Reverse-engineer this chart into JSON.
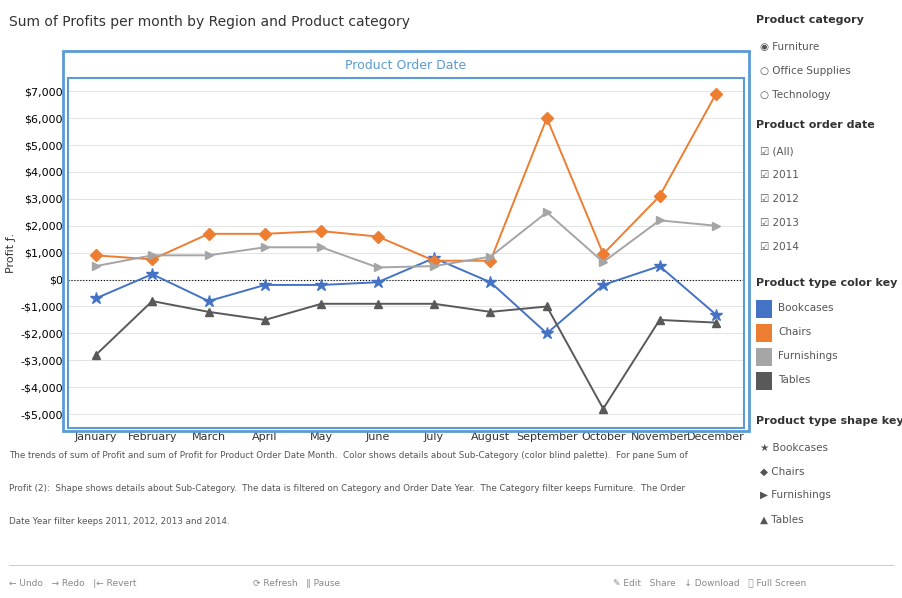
{
  "title": "Sum of Profits per month by Region and Product category",
  "xlabel": "Product Order Date",
  "ylabel": "Profit ƒ.",
  "months": [
    "January",
    "February",
    "March",
    "April",
    "May",
    "June",
    "July",
    "August",
    "September",
    "October",
    "November",
    "December"
  ],
  "bookcases": [
    -700,
    200,
    -800,
    -200,
    -200,
    -100,
    800,
    -100,
    -2000,
    -200,
    500,
    -1300
  ],
  "chairs": [
    900,
    750,
    1700,
    1700,
    1800,
    1600,
    700,
    700,
    6000,
    950,
    3100,
    6900
  ],
  "furnishings": [
    500,
    900,
    900,
    1200,
    1200,
    450,
    500,
    850,
    2500,
    650,
    2200,
    2000
  ],
  "tables": [
    -2800,
    -800,
    -1200,
    -1500,
    -900,
    -900,
    -900,
    -1200,
    -1000,
    -4800,
    -1500,
    -1600
  ],
  "color_bookcases": "#4472C4",
  "color_chairs": "#ED7D31",
  "color_furnishings": "#A5A5A5",
  "color_tables": "#595959",
  "ylim": [
    -5500,
    7500
  ],
  "yticks": [
    -5000,
    -4000,
    -3000,
    -2000,
    -1000,
    0,
    1000,
    2000,
    3000,
    4000,
    5000,
    6000,
    7000
  ],
  "caption_line1": "The trends of sum of Profit and sum of Profit for Product Order Date Month.  Color shows details about Sub-Category (color blind palette).  For pane Sum of",
  "caption_line2": "Profit (2):  Shape shows details about Sub-Category.  The data is filtered on Category and Order Date Year.  The Category filter keeps Furniture.  The Order",
  "caption_line3": "Date Year filter keeps 2011, 2012, 2013 and 2014.",
  "border_color": "#5B9BD5",
  "plot_bg": "#FFFFFF",
  "outer_bg": "#FFFFFF",
  "grid_color": "#D9D9D9"
}
